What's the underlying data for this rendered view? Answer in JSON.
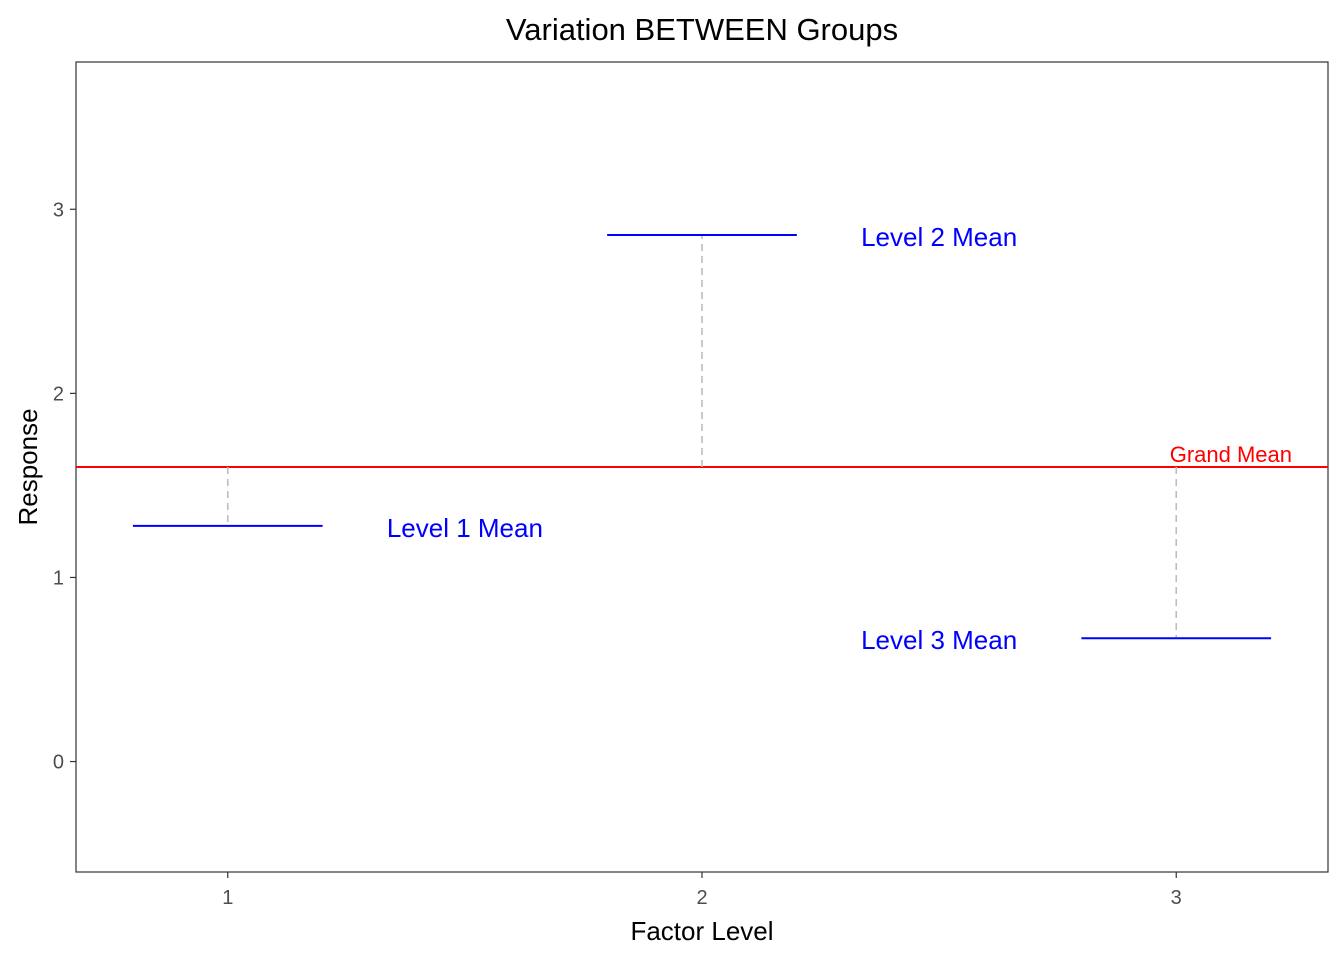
{
  "chart_data": {
    "type": "line",
    "title": "Variation BETWEEN Groups",
    "xlabel": "Factor Level",
    "ylabel": "Response",
    "x_categories": [
      "1",
      "2",
      "3"
    ],
    "xlim": [
      0.68,
      3.32
    ],
    "ylim": [
      -0.6,
      3.8
    ],
    "y_ticks": [
      0,
      1,
      2,
      3
    ],
    "grid": false,
    "grand_mean": {
      "label": "Grand Mean",
      "value": 1.6,
      "color": "#ff0000"
    },
    "series": [
      {
        "x": 1,
        "value": 1.28,
        "label": "Level 1 Mean",
        "label_x": 1.5,
        "color": "#0000ff"
      },
      {
        "x": 2,
        "value": 2.86,
        "label": "Level 2 Mean",
        "label_x": 2.5,
        "color": "#0000ff"
      },
      {
        "x": 3,
        "value": 0.67,
        "label": "Level 3 Mean",
        "label_x": 2.5,
        "color": "#0000ff"
      }
    ],
    "connector_color": "#bdbdbd"
  }
}
